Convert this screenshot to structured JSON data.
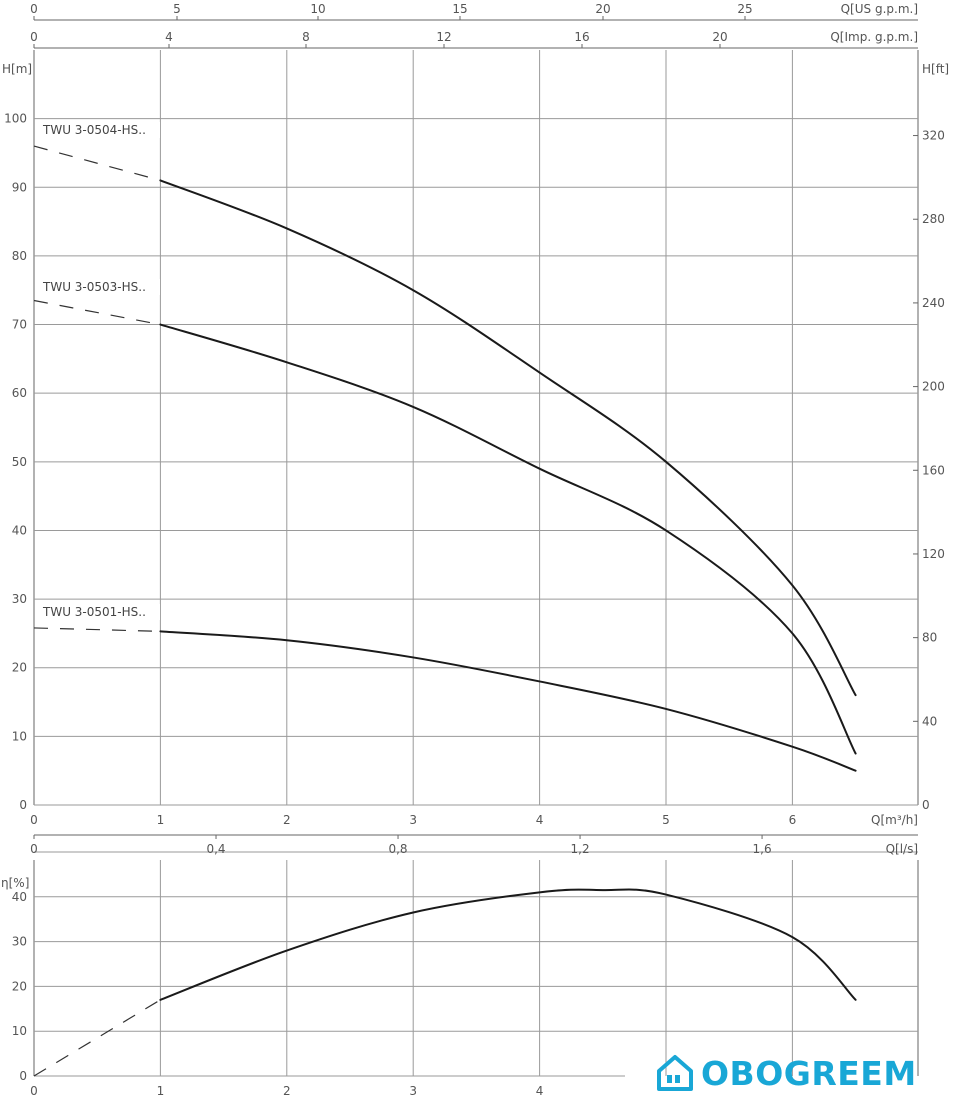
{
  "chart_data": [
    {
      "type": "line",
      "title": "",
      "xlabel": "Q[m³/h]",
      "ylabel": "H[m]",
      "ylabel_right": "H[ft]",
      "x_top_axes": [
        {
          "label": "Q[US g.p.m.]",
          "ticks": [
            "0",
            "5",
            "10",
            "15",
            "20",
            "25"
          ]
        },
        {
          "label": "Q[Imp. g.p.m.]",
          "ticks": [
            "0",
            "4",
            "8",
            "12",
            "16",
            "20"
          ]
        }
      ],
      "xlim": [
        0,
        7
      ],
      "ylim": [
        0,
        110
      ],
      "x_ticks": [
        "0",
        "1",
        "2",
        "3",
        "4",
        "5",
        "6"
      ],
      "y_ticks": [
        "0",
        "10",
        "20",
        "30",
        "40",
        "50",
        "60",
        "70",
        "80",
        "90",
        "100"
      ],
      "y_right_ticks": [
        "0",
        "40",
        "80",
        "120",
        "160",
        "200",
        "240",
        "280",
        "320"
      ],
      "grid": true,
      "series": [
        {
          "name": "TWU 3-0504-HS..",
          "x": [
            1.0,
            2.0,
            3.0,
            4.0,
            5.0,
            6.0,
            6.5
          ],
          "y": [
            91,
            84,
            75,
            63,
            50,
            32,
            16
          ],
          "dashed_from_x": 0.0,
          "dashed_start_y": 96
        },
        {
          "name": "TWU 3-0503-HS..",
          "x": [
            1.0,
            2.0,
            3.0,
            4.0,
            5.0,
            6.0,
            6.5
          ],
          "y": [
            70,
            64.5,
            58,
            49,
            40,
            25,
            7.5
          ],
          "dashed_from_x": 0.0,
          "dashed_start_y": 73.5
        },
        {
          "name": "TWU 3-0501-HS..",
          "x": [
            1.0,
            2.0,
            3.0,
            4.0,
            5.0,
            6.0,
            6.5
          ],
          "y": [
            25.3,
            24,
            21.5,
            18,
            14,
            8.5,
            5
          ],
          "dashed_from_x": 0.0,
          "dashed_start_y": 25.8
        }
      ]
    },
    {
      "type": "line",
      "title": "",
      "xlabel": "",
      "ylabel": "η[%]",
      "x_top_axis": {
        "label": "Q[l/s]",
        "ticks": [
          "0",
          "0,4",
          "0,8",
          "1,2",
          "1,6"
        ]
      },
      "xlim": [
        0,
        7
      ],
      "ylim": [
        0,
        50
      ],
      "x_ticks": [
        "0",
        "1",
        "2",
        "3",
        "4"
      ],
      "y_ticks": [
        "0",
        "10",
        "20",
        "30",
        "40"
      ],
      "grid": true,
      "series": [
        {
          "x": [
            1.0,
            2.0,
            3.0,
            4.0,
            4.5,
            5.0,
            6.0,
            6.5
          ],
          "y": [
            17,
            28,
            36.5,
            41,
            41.5,
            40.5,
            31,
            17
          ],
          "dashed_from_x": 0.0,
          "dashed_start_y": 0
        }
      ]
    }
  ],
  "brand": {
    "name": "OBOGREEM",
    "color": "#19a7d6"
  }
}
